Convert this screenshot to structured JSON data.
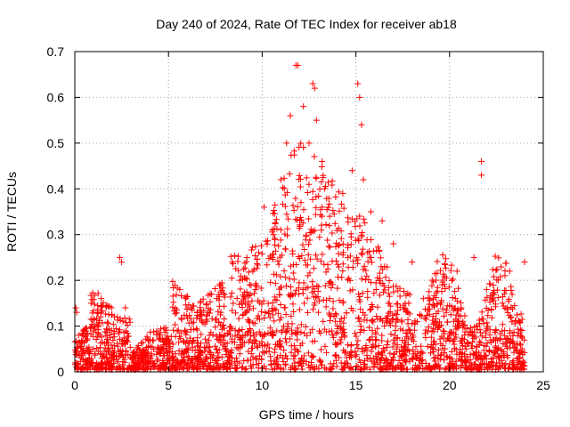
{
  "chart_data": {
    "type": "scatter",
    "title": "Day 240 of 2024, Rate Of TEC Index for receiver ab18",
    "xlabel": "GPS time / hours",
    "ylabel": "ROTI / TECUs",
    "xlim": [
      0,
      25
    ],
    "ylim": [
      0,
      0.7
    ],
    "xticks": [
      0,
      5,
      10,
      15,
      20,
      25
    ],
    "yticks": [
      0,
      0.1,
      0.2,
      0.3,
      0.4,
      0.5,
      0.6,
      0.7
    ],
    "xtick_labels": [
      "0",
      "5",
      "10",
      "15",
      "20",
      "25"
    ],
    "ytick_labels": [
      "0",
      "0.1",
      "0.2",
      "0.3",
      "0.4",
      "0.5",
      "0.6",
      "0.7"
    ],
    "grid": true,
    "marker": "+",
    "color": "#ff0000",
    "series": [
      {
        "name": "ROTI",
        "x_range": [
          0,
          24
        ],
        "points": [
          [
            0.05,
            0.14
          ],
          [
            0.1,
            0.13
          ],
          [
            0.2,
            0.08
          ],
          [
            1.4,
            0.13
          ],
          [
            2.4,
            0.25
          ],
          [
            2.5,
            0.24
          ],
          [
            2.7,
            0.14
          ],
          [
            5.6,
            0.18
          ],
          [
            6.2,
            0.14
          ],
          [
            7.1,
            0.13
          ],
          [
            7.8,
            0.13
          ],
          [
            8.4,
            0.24
          ],
          [
            8.8,
            0.2
          ],
          [
            9.5,
            0.22
          ],
          [
            10.1,
            0.36
          ],
          [
            10.6,
            0.3
          ],
          [
            11.0,
            0.42
          ],
          [
            11.3,
            0.5
          ],
          [
            11.5,
            0.56
          ],
          [
            11.8,
            0.67
          ],
          [
            11.9,
            0.67
          ],
          [
            12.2,
            0.58
          ],
          [
            12.5,
            0.5
          ],
          [
            12.7,
            0.63
          ],
          [
            12.8,
            0.62
          ],
          [
            12.9,
            0.55
          ],
          [
            13.2,
            0.46
          ],
          [
            13.6,
            0.34
          ],
          [
            14.3,
            0.39
          ],
          [
            14.8,
            0.44
          ],
          [
            15.1,
            0.63
          ],
          [
            15.2,
            0.6
          ],
          [
            15.3,
            0.54
          ],
          [
            15.4,
            0.42
          ],
          [
            15.8,
            0.35
          ],
          [
            16.4,
            0.33
          ],
          [
            17.0,
            0.28
          ],
          [
            18.0,
            0.24
          ],
          [
            18.6,
            0.16
          ],
          [
            19.6,
            0.19
          ],
          [
            20.4,
            0.22
          ],
          [
            21.3,
            0.25
          ],
          [
            21.7,
            0.46
          ],
          [
            21.7,
            0.43
          ],
          [
            22.3,
            0.16
          ],
          [
            23.2,
            0.22
          ],
          [
            24.0,
            0.24
          ]
        ]
      }
    ]
  }
}
